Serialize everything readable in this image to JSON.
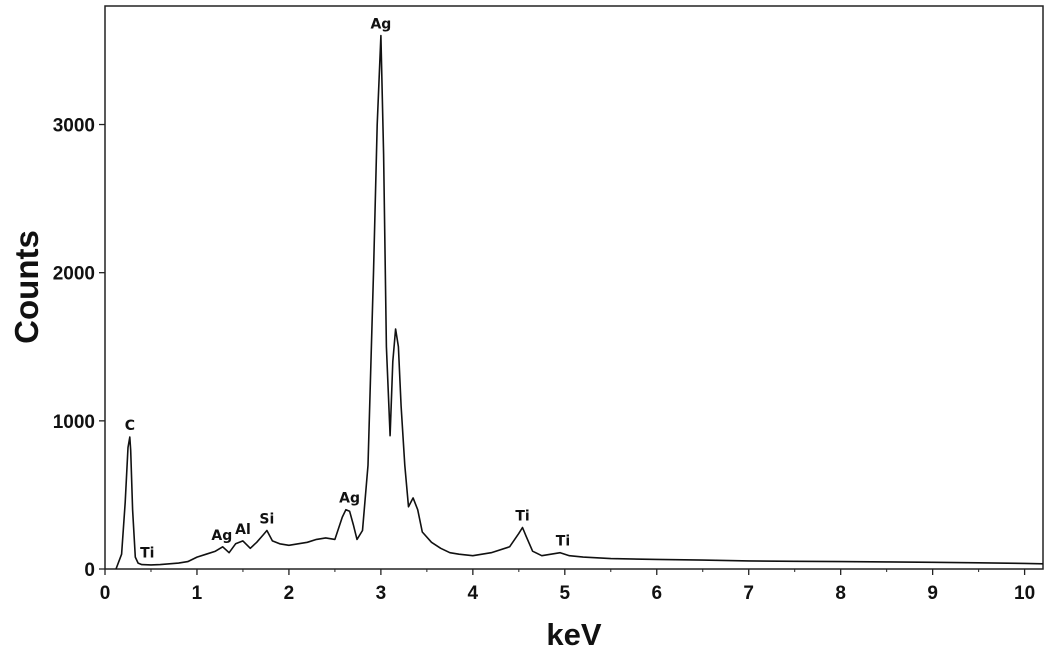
{
  "chart_data": {
    "type": "line",
    "title": "",
    "xlabel": "keV",
    "ylabel": "Counts",
    "xlim": [
      0,
      10.2
    ],
    "ylim": [
      0,
      3800
    ],
    "grid": false,
    "x_ticks": [
      0,
      1,
      2,
      3,
      4,
      5,
      6,
      7,
      8,
      9,
      10
    ],
    "x_tick_labels": [
      "0",
      "1",
      "2",
      "3",
      "4",
      "5",
      "6",
      "7",
      "8",
      "9",
      "10"
    ],
    "y_ticks": [
      0,
      1000,
      2000,
      3000
    ],
    "y_tick_labels": [
      "0",
      "1000",
      "2000",
      "3000"
    ],
    "series": [
      {
        "color": "#111111",
        "x": [
          0.12,
          0.18,
          0.22,
          0.25,
          0.27,
          0.28,
          0.3,
          0.33,
          0.36,
          0.4,
          0.5,
          0.6,
          0.7,
          0.8,
          0.9,
          1.0,
          1.1,
          1.2,
          1.28,
          1.35,
          1.42,
          1.5,
          1.58,
          1.65,
          1.72,
          1.76,
          1.82,
          1.9,
          2.0,
          2.1,
          2.2,
          2.3,
          2.4,
          2.5,
          2.58,
          2.62,
          2.66,
          2.7,
          2.74,
          2.8,
          2.86,
          2.92,
          2.96,
          3.0,
          3.03,
          3.06,
          3.1,
          3.13,
          3.16,
          3.19,
          3.22,
          3.26,
          3.3,
          3.35,
          3.4,
          3.45,
          3.55,
          3.65,
          3.75,
          3.85,
          4.0,
          4.2,
          4.4,
          4.5,
          4.54,
          4.58,
          4.65,
          4.75,
          4.85,
          4.95,
          5.05,
          5.2,
          5.5,
          6.0,
          6.5,
          7.0,
          7.5,
          8.0,
          8.5,
          9.0,
          9.5,
          10.0,
          10.2
        ],
        "y": [
          0,
          100,
          450,
          820,
          890,
          800,
          400,
          80,
          40,
          30,
          28,
          30,
          35,
          40,
          50,
          80,
          100,
          120,
          150,
          110,
          170,
          190,
          140,
          180,
          230,
          260,
          190,
          170,
          160,
          170,
          180,
          200,
          210,
          200,
          350,
          400,
          390,
          300,
          200,
          260,
          700,
          2000,
          3000,
          3600,
          2800,
          1500,
          900,
          1400,
          1620,
          1500,
          1100,
          700,
          420,
          480,
          400,
          250,
          180,
          140,
          110,
          100,
          90,
          110,
          150,
          240,
          280,
          220,
          120,
          90,
          100,
          110,
          90,
          80,
          70,
          65,
          60,
          55,
          52,
          50,
          48,
          45,
          42,
          38,
          35
        ]
      }
    ],
    "annotations": [
      {
        "text": "C",
        "x": 0.27,
        "y": 890
      },
      {
        "text": "Ti",
        "x": 0.46,
        "y": 30
      },
      {
        "text": "Ag",
        "x": 1.27,
        "y": 150
      },
      {
        "text": "Al",
        "x": 1.5,
        "y": 190
      },
      {
        "text": "Si",
        "x": 1.76,
        "y": 260
      },
      {
        "text": "Ag",
        "x": 2.66,
        "y": 400
      },
      {
        "text": "Ag",
        "x": 3.0,
        "y": 3600
      },
      {
        "text": "Ti",
        "x": 4.54,
        "y": 280
      },
      {
        "text": "Ti",
        "x": 4.98,
        "y": 110
      }
    ]
  }
}
